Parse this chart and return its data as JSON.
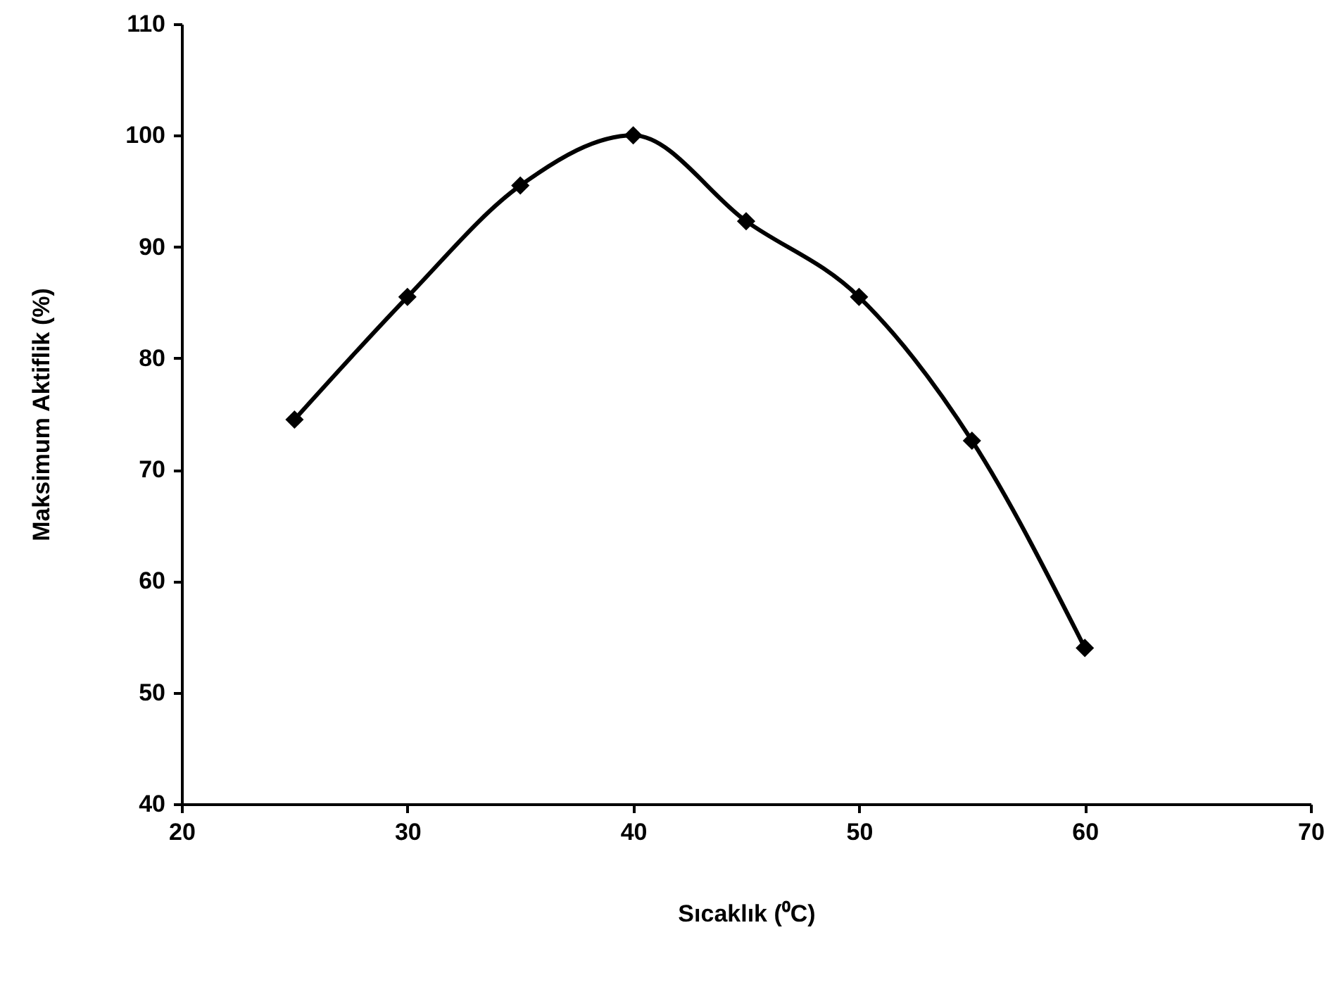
{
  "chart_data": {
    "type": "line",
    "xlabel": "Sıcaklık (⁰C)",
    "ylabel": "Maksimum  Aktiflik  (%)",
    "x": [
      25,
      30,
      35,
      40,
      45,
      50,
      55,
      60
    ],
    "series": [
      {
        "color": "#000000",
        "values": [
          74.5,
          85.5,
          95.5,
          100,
          92.3,
          85.5,
          72.6,
          54
        ]
      }
    ],
    "xlim": [
      20,
      70
    ],
    "xticks": [
      20,
      30,
      40,
      50,
      60,
      70
    ],
    "ylim": [
      40,
      110
    ],
    "yticks": [
      40,
      50,
      60,
      70,
      80,
      90,
      100,
      110
    ],
    "marker": "diamond",
    "line_style": "solid"
  }
}
